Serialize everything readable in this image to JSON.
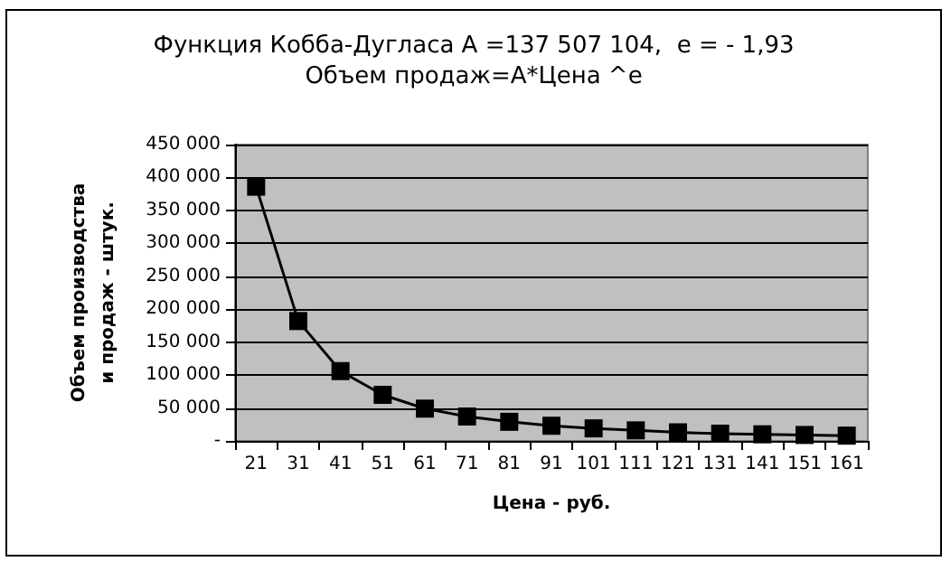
{
  "chart_data": {
    "type": "line",
    "title": "Функция Кобба-Дугласа А =137 507 104,  е = - 1,93",
    "subtitle": "Объем продаж=А*Цена ^е",
    "xlabel": "Цена - руб.",
    "ylabel": "Объем производства и продаж - штук.",
    "categories": [
      "21",
      "31",
      "41",
      "51",
      "61",
      "71",
      "81",
      "91",
      "101",
      "111",
      "121",
      "131",
      "141",
      "151",
      "161"
    ],
    "series": [
      {
        "color": "#000000",
        "values": [
          386000,
          182000,
          106000,
          70000,
          49000,
          37000,
          29000,
          23000,
          19000,
          16000,
          13000,
          11000,
          10000,
          9000,
          8000
        ]
      }
    ],
    "ylim": [
      0,
      450000
    ],
    "yticks": [
      {
        "value": 0,
        "label": "-"
      },
      {
        "value": 50000,
        "label": "50 000"
      },
      {
        "value": 100000,
        "label": "100 000"
      },
      {
        "value": 150000,
        "label": "150 000"
      },
      {
        "value": 200000,
        "label": "200 000"
      },
      {
        "value": 250000,
        "label": "250 000"
      },
      {
        "value": 300000,
        "label": "300 000"
      },
      {
        "value": 350000,
        "label": "350 000"
      },
      {
        "value": 400000,
        "label": "400 000"
      },
      {
        "value": 450000,
        "label": "450 000"
      }
    ],
    "grid": "y",
    "marker": "square",
    "line_style": "solid"
  }
}
